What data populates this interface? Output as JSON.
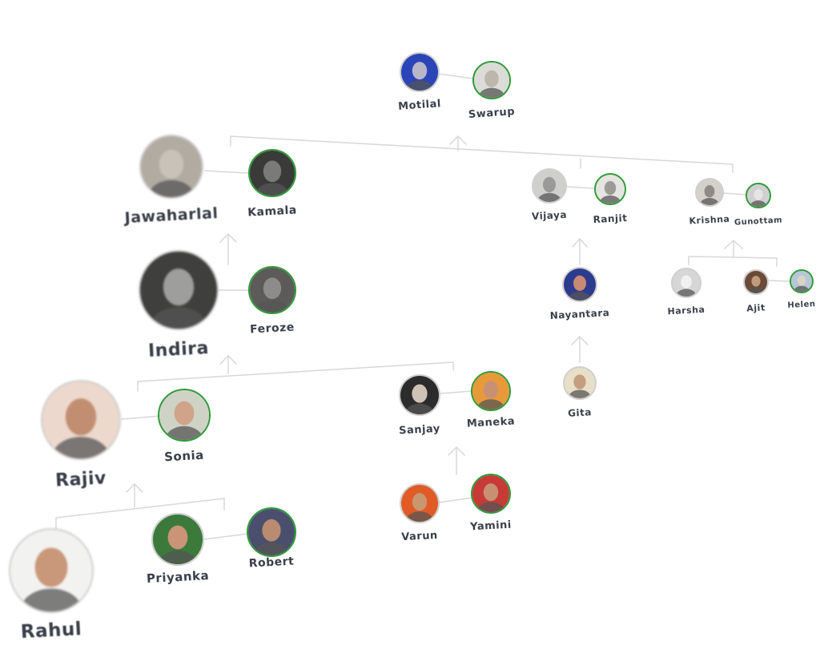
{
  "colors": {
    "line": "#d8d8d8",
    "spouse_ring": "#2e9b3a",
    "blood_ring": "#cfcfcf",
    "label": "#3a3f4a"
  },
  "people": {
    "motilal": {
      "name": "Motilal",
      "tone": "#b9b6c9",
      "bg": "#2b45b8"
    },
    "swarup": {
      "name": "Swarup",
      "tone": "#bdb6ad",
      "bg": "#dcdcd6"
    },
    "jawaharlal": {
      "name": "Jawaharlal",
      "tone": "#c9c2b8",
      "bg": "#b2aba2"
    },
    "kamala": {
      "name": "Kamala",
      "tone": "#7a7a78",
      "bg": "#3a3a38"
    },
    "vijaya": {
      "name": "Vijaya",
      "tone": "#9a9a98",
      "bg": "#cfcfcd"
    },
    "ranjit": {
      "name": "Ranjit",
      "tone": "#9c9a96",
      "bg": "#e6e4e0"
    },
    "krishna": {
      "name": "Krishna",
      "tone": "#8f8a86",
      "bg": "#d4d0cc"
    },
    "gunottam": {
      "name": "Gunottam",
      "tone": "#e5e5e5",
      "bg": "#d0d0d0"
    },
    "indira": {
      "name": "Indira",
      "tone": "#9e9e9c",
      "bg": "#3f3f3e"
    },
    "feroze": {
      "name": "Feroze",
      "tone": "#8d8c8a",
      "bg": "#5c5b59"
    },
    "nayantara": {
      "name": "Nayantara",
      "tone": "#c88a72",
      "bg": "#2d3b8e"
    },
    "harsha": {
      "name": "Harsha",
      "tone": "#f0f0f0",
      "bg": "#d6d6d6"
    },
    "ajit": {
      "name": "Ajit",
      "tone": "#c29b7c",
      "bg": "#6b4a38"
    },
    "helen": {
      "name": "Helen",
      "tone": "#d9d3c8",
      "bg": "#b6c8d6"
    },
    "gita": {
      "name": "Gita",
      "tone": "#c59d80",
      "bg": "#e7dfc6"
    },
    "rajiv": {
      "name": "Rajiv",
      "tone": "#c28e72",
      "bg": "#ecd8cc"
    },
    "sonia": {
      "name": "Sonia",
      "tone": "#d0a488",
      "bg": "#cfd3c6"
    },
    "sanjay": {
      "name": "Sanjay",
      "tone": "#cfc2b6",
      "bg": "#2c2c2c"
    },
    "maneka": {
      "name": "Maneka",
      "tone": "#c99174",
      "bg": "#e89a3a"
    },
    "priyanka": {
      "name": "Priyanka",
      "tone": "#c99477",
      "bg": "#3b7a3a"
    },
    "robert": {
      "name": "Robert",
      "tone": "#b98c70",
      "bg": "#4b4f6e"
    },
    "varun": {
      "name": "Varun",
      "tone": "#c9966f",
      "bg": "#e05b26"
    },
    "yamini": {
      "name": "Yamini",
      "tone": "#c89072",
      "bg": "#c83a36"
    },
    "rahul": {
      "name": "Rahul",
      "tone": "#c9977a",
      "bg": "#f2f2f0"
    }
  }
}
